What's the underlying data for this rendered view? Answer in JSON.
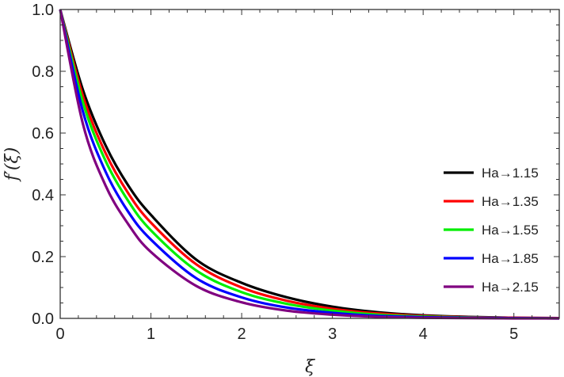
{
  "chart_data": {
    "type": "line",
    "title": "",
    "xlabel": "ξ",
    "ylabel": "f′(ξ)",
    "xlim": [
      0,
      5.5
    ],
    "ylim": [
      0,
      1.0
    ],
    "x_ticks": [
      0,
      1,
      2,
      3,
      4,
      5
    ],
    "y_ticks": [
      0.0,
      0.2,
      0.4,
      0.6,
      0.8,
      1.0
    ],
    "x_tick_labels": [
      "0",
      "1",
      "2",
      "3",
      "4",
      "5"
    ],
    "y_tick_labels": [
      "0.0",
      "0.2",
      "0.4",
      "0.6",
      "0.8",
      "1.0"
    ],
    "grid": false,
    "legend_position": "right",
    "x": [
      0,
      0.25,
      0.5,
      0.75,
      1.0,
      1.5,
      2.0,
      2.5,
      3.0,
      3.5,
      4.0,
      4.5,
      5.0,
      5.5
    ],
    "series": [
      {
        "name": "Ha→1.15",
        "color": "#000000",
        "values": [
          1.0,
          0.74,
          0.56,
          0.43,
          0.335,
          0.19,
          0.115,
          0.068,
          0.038,
          0.02,
          0.01,
          0.005,
          0.002,
          0.001
        ]
      },
      {
        "name": "Ha→1.35",
        "color": "#ff0000",
        "values": [
          1.0,
          0.72,
          0.535,
          0.405,
          0.31,
          0.175,
          0.1,
          0.057,
          0.031,
          0.016,
          0.008,
          0.004,
          0.002,
          0.001
        ]
      },
      {
        "name": "Ha→1.55",
        "color": "#00ee00",
        "values": [
          1.0,
          0.7,
          0.51,
          0.38,
          0.285,
          0.155,
          0.085,
          0.047,
          0.025,
          0.012,
          0.006,
          0.003,
          0.001,
          0.0
        ]
      },
      {
        "name": "Ha→1.85",
        "color": "#0000ff",
        "values": [
          1.0,
          0.67,
          0.475,
          0.345,
          0.255,
          0.13,
          0.068,
          0.035,
          0.018,
          0.008,
          0.004,
          0.002,
          0.001,
          0.0
        ]
      },
      {
        "name": "Ha→2.15",
        "color": "#800080",
        "values": [
          1.0,
          0.63,
          0.43,
          0.305,
          0.215,
          0.105,
          0.052,
          0.025,
          0.012,
          0.005,
          0.002,
          0.001,
          0.0,
          0.0
        ]
      }
    ]
  }
}
